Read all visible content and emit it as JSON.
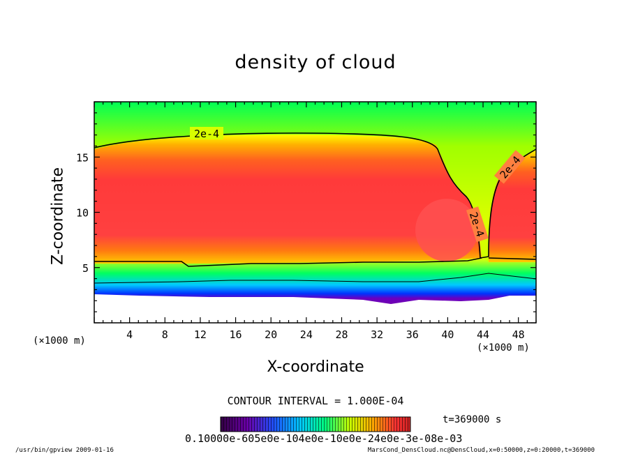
{
  "chart_data": {
    "type": "heatmap",
    "title": "density of cloud",
    "xlabel": "X-coordinate",
    "ylabel": "Z-coordinate",
    "x_unit_left": "(×1000 m)",
    "x_unit_right": "(×1000 m)",
    "xlim": [
      0,
      50
    ],
    "ylim": [
      0,
      20
    ],
    "x_ticks": [
      "4",
      "8",
      "12",
      "16",
      "20",
      "24",
      "28",
      "32",
      "36",
      "40",
      "44",
      "48"
    ],
    "y_ticks": [
      "5",
      "10",
      "15"
    ],
    "contour_labels": [
      "2e-4",
      "2e-4",
      "2e-4"
    ],
    "contour_interval": "CONTOUR INTERVAL = 1.000E-04",
    "time": "t=369000 s",
    "colorbar_labels": "0.10000e-605e0e-104e0e-10e0e-24e0e-3e-08e-03",
    "colorscale": [
      "#6a00a8",
      "#0000ff",
      "#00c8ff",
      "#00ff80",
      "#c8ff00",
      "#ffff00",
      "#ff9900",
      "#ff3333"
    ]
  },
  "footer": {
    "left": "/usr/bin/gpview   2009-01-16",
    "right": "MarsCond_DensCloud.nc@DensCloud,x=0:50000,z=0:20000,t=369000"
  }
}
